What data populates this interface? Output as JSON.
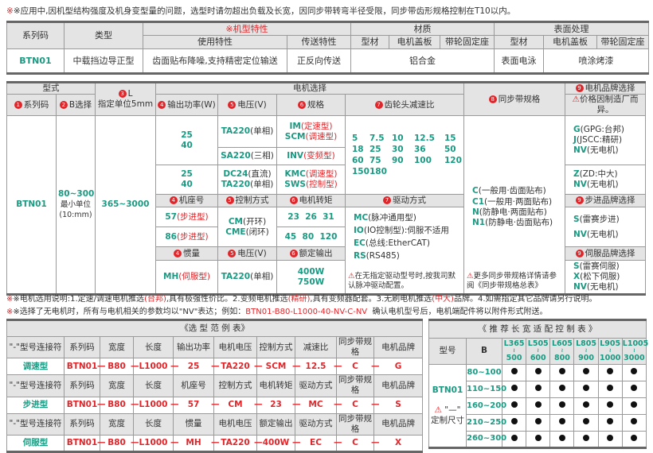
{
  "top_note": "※应用中,因机型结构强度及机身变型量的问题，选型时请勿超出负载及长宽，因同步带转弯半径受限，同步带齿形规格控制在T10以内。",
  "colors": {
    "green": "#1a9a82",
    "red": "#e0262a",
    "header_bg": "#e4e4e4"
  },
  "spec_table": {
    "h_series": "系列码",
    "h_type": "类型",
    "h_features": "※机型特性",
    "h_material": "材质",
    "h_surface": "表面处理",
    "h_usage": "使用特性",
    "h_transfer": "传送特性",
    "h_profile": "型材",
    "h_motor_plate": "电机盖板",
    "h_pulley_seat": "带轮固定座",
    "h_profile2": "型材",
    "h_motor_plate2": "电机盖板",
    "h_pulley_seat2": "带轮固定座",
    "series": "BTN01",
    "type": "中载挡边导正型",
    "usage": "齿面贴布降噪,支持精密定位输送",
    "transfer": "正反向传送",
    "material": "铝合金",
    "surface_profile": "表面电泳",
    "surface_other": "喷涂烤漆"
  },
  "model_table": {
    "h_model": "型式",
    "h_L_num": "❸",
    "h_L": "L",
    "h_L_unit": "指定单位5mm",
    "h_motor": "电机选择",
    "h_belt": "同步带规格",
    "h_brand": "电机品牌选择",
    "h_series": "系列码",
    "h_b": "B选择",
    "h_power": "输出功率(W)",
    "h_voltage": "电压(V)",
    "h_spec": "规格",
    "h_ratio": "齿轮头减速比",
    "brand_note": "价格因制造厂而异。",
    "series": "BTN01",
    "b_range": "80~300",
    "b_unit1": "最小单位",
    "b_unit2": "(10:mm)",
    "l_range": "365~3000",
    "power_a1": "25",
    "power_a2": "40",
    "volt_a": "TA220",
    "volt_a_s": "(单相)",
    "spec_a1": "IM",
    "spec_a1_s": "(定速型)",
    "spec_a2": "SCM",
    "spec_a2_s": "(调速型)",
    "volt_b": "SA220",
    "volt_b_s": "(三相)",
    "spec_b": "INV",
    "spec_b_s": "(变频型)",
    "power_c1": "25",
    "power_c2": "40",
    "volt_c1": "DC24",
    "volt_c1_s": "(直流)",
    "volt_c2": "TA220",
    "volt_c2_s": "(单相)",
    "spec_c1": "KMC",
    "spec_c1_s": "(调速型)",
    "spec_c2": "SWS",
    "spec_c2_s": "(控制型)",
    "ratios": [
      "5",
      "7.5",
      "10",
      "12.5",
      "15",
      "18",
      "25",
      "30",
      "36",
      "50",
      "60",
      "75",
      "90",
      "100",
      "120",
      "150",
      "180"
    ],
    "brand_g": "G",
    "brand_g_s": "(GPG:台邦)",
    "brand_j": "J",
    "brand_j_s": "(JSCC:精研)",
    "brand_nv": "NV",
    "brand_nv_s": "(无电机)",
    "brand_z": "Z",
    "brand_z_s": "(ZD:中大)",
    "h_frame": "机座号",
    "h_control": "控制方式",
    "h_torque": "电机转矩",
    "h_drive": "驱动方式",
    "h_stepper_brand": "步进品牌选择",
    "frame_57": "57",
    "frame_57_s": "(步进型)",
    "frame_86": "86",
    "frame_86_s": "(步进型)",
    "ctrl_cm": "CM",
    "ctrl_cm_s": "(开环)",
    "ctrl_cme": "CME",
    "ctrl_cme_s": "(闭环)",
    "torque_1": "23  26  31",
    "torque_2": "45  80  120",
    "drive_mc": "MC",
    "drive_mc_s": "(脉冲通用型)",
    "drive_io": "IO",
    "drive_io_s": "(IO控制型):伺服不适用",
    "drive_ec": "EC",
    "drive_ec_s": "(总线:EtherCAT)",
    "drive_rs": "RS",
    "drive_rs_s": "(RS485)",
    "drive_note": "在无指定驱动型号时,按我司默认脉冲驱动配置。",
    "belt_c": "C",
    "belt_c_s": "(一般用·齿面贴布)",
    "belt_c1": "C1",
    "belt_c1_s": "(一般用·两面贴布)",
    "belt_n": "N",
    "belt_n_s": "(防静电·两面贴布)",
    "belt_n1": "N1",
    "belt_n1_s": "(防静电·齿面贴布)",
    "belt_note": "更多同步带规格详情请参阅《同步带规格总表》",
    "step_s": "S",
    "step_s_s": "(雷赛步进)",
    "h_inertia": "惯量",
    "h_voltage2": "电压(V)",
    "h_rated": "额定输出",
    "h_servo_brand": "伺服品牌选择",
    "inertia": "MH",
    "inertia_s": "(伺服型)",
    "volt_servo": "TA220",
    "volt_servo_s": "(单相)",
    "rated_1": "400W",
    "rated_2": "750W",
    "servo_s": "S",
    "servo_s_s": "(雷赛伺服)",
    "servo_x": "X",
    "servo_x_s": "(松下伺服)"
  },
  "notes": {
    "n1_a": "※电机选用说明:1.定速/调速电机推选",
    "n1_b": "(台邦)",
    "n1_c": ",具有极强性价比。2.变频电机推选",
    "n1_d": "(精研)",
    "n1_e": ",具有变频器配套。3.无刷电机推选",
    "n1_f": "(中大)",
    "n1_g": "品牌。4.如需指定其它品牌请另行说明。",
    "n2_a": "※选择了无电机时，所有与电机相关的参数均以\"NV\"表达；例如：",
    "n2_b": "BTN01-B80-L1000-40-NV-C-NV",
    "n2_c": "  确认电机型号后，电机端配件将以附件形式附送。"
  },
  "example_table": {
    "title": "《选 型 范 例 表》",
    "connector": "—",
    "groups": [
      {
        "headers": [
          "\"-\"型号连接符",
          "系列码",
          "宽度",
          "长度",
          "输出功率",
          "电机电压",
          "控制方式",
          "减速比",
          "同步带规格",
          "电机品牌"
        ],
        "label": "调速型",
        "values": [
          "BTN01",
          "B80",
          "L1000",
          "25",
          "TA220",
          "SCM",
          "12.5",
          "C",
          "G"
        ]
      },
      {
        "headers": [
          "\"-\"型号连接符",
          "系列码",
          "宽度",
          "长度",
          "机座号",
          "控制方式",
          "电机转矩",
          "驱动方式",
          "同步带规格",
          "电机品牌"
        ],
        "label": "步进型",
        "values": [
          "BTN01",
          "B80",
          "L1000",
          "57",
          "CM",
          "23",
          "MC",
          "C",
          "S"
        ]
      },
      {
        "headers": [
          "\"-\"型号连接符",
          "系列码",
          "宽度",
          "长度",
          "惯量",
          "电机电压",
          "额定输出",
          "驱动方式",
          "同步带规格",
          "电机品牌"
        ],
        "label": "伺服型",
        "values": [
          "BTN01",
          "B80",
          "L1000",
          "MH",
          "TA220",
          "400W",
          "EC",
          "C",
          "X"
        ]
      }
    ]
  },
  "recommend_table": {
    "title": "《 推 荐 长 宽 适 配 控 制 表 》",
    "h_model": "型号",
    "h_b": "B",
    "length_cols": [
      [
        "L365",
        "500"
      ],
      [
        "L505",
        "600"
      ],
      [
        "L605",
        "800"
      ],
      [
        "L805",
        "900"
      ],
      [
        "L905",
        "1000"
      ],
      [
        "L1005",
        "3000"
      ]
    ],
    "range_sep": "≀",
    "model": "BTN01",
    "custom_mark": "\"—\"",
    "custom_label": "定制尺寸",
    "rows": [
      {
        "b": "80~100",
        "fit": [
          true,
          true,
          true,
          true,
          true,
          true
        ]
      },
      {
        "b": "110~150",
        "fit": [
          true,
          true,
          true,
          true,
          true,
          true
        ]
      },
      {
        "b": "160~200",
        "fit": [
          true,
          true,
          true,
          true,
          true,
          true
        ]
      },
      {
        "b": "210~250",
        "fit": [
          true,
          true,
          true,
          true,
          true,
          true
        ]
      },
      {
        "b": "260~300",
        "fit": [
          true,
          true,
          true,
          true,
          true,
          true
        ]
      }
    ]
  }
}
